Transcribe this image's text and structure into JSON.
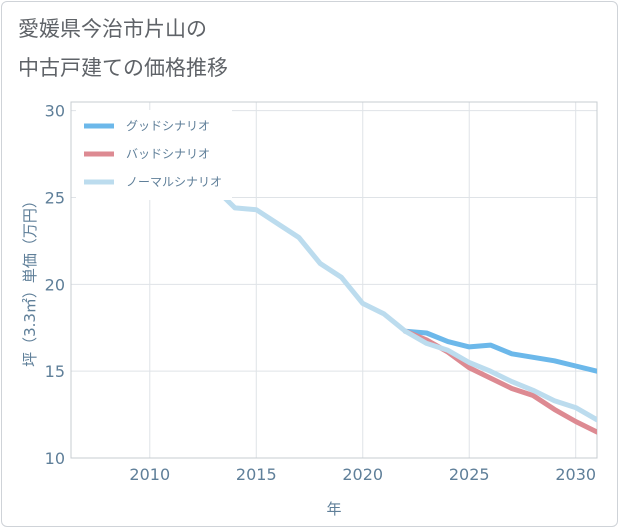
{
  "title": {
    "line1": "愛媛県今治市片山の",
    "line2": "中古戸建ての価格推移"
  },
  "chart_data": {
    "type": "line",
    "xlabel": "年",
    "ylabel": "坪（3.3㎡）単価（万円）",
    "xlim": [
      2006.3,
      2031
    ],
    "ylim": [
      10,
      30.5
    ],
    "xticks": [
      2010,
      2015,
      2020,
      2025,
      2030
    ],
    "yticks": [
      10,
      15,
      20,
      25,
      30
    ],
    "grid": true,
    "legend_position": "top-left",
    "series": [
      {
        "name": "グッドシナリオ",
        "color": "#6cb8ea",
        "x": [
          2022,
          2023,
          2024,
          2025,
          2026,
          2027,
          2028,
          2029,
          2030,
          2031
        ],
        "y": [
          17.3,
          17.2,
          16.7,
          16.4,
          16.5,
          16.0,
          15.8,
          15.6,
          15.3,
          15.0
        ]
      },
      {
        "name": "バッドシナリオ",
        "color": "#dd8a92",
        "x": [
          2022,
          2023,
          2024,
          2025,
          2026,
          2027,
          2028,
          2029,
          2030,
          2031
        ],
        "y": [
          17.3,
          16.8,
          16.1,
          15.2,
          14.6,
          14.0,
          13.6,
          12.8,
          12.1,
          11.5
        ]
      },
      {
        "name": "ノーマルシナリオ",
        "color": "#bcdcee",
        "x": [
          2008,
          2009,
          2010,
          2011,
          2012,
          2013,
          2014,
          2015,
          2016,
          2017,
          2018,
          2019,
          2020,
          2021,
          2022,
          2023,
          2024,
          2025,
          2026,
          2027,
          2028,
          2029,
          2030,
          2031
        ],
        "y": [
          28.6,
          29.8,
          29.2,
          27.3,
          26.2,
          25.6,
          24.4,
          24.3,
          23.5,
          22.7,
          21.2,
          20.4,
          18.9,
          18.3,
          17.3,
          16.6,
          16.2,
          15.5,
          15.0,
          14.4,
          13.9,
          13.3,
          12.9,
          12.2
        ]
      }
    ]
  }
}
